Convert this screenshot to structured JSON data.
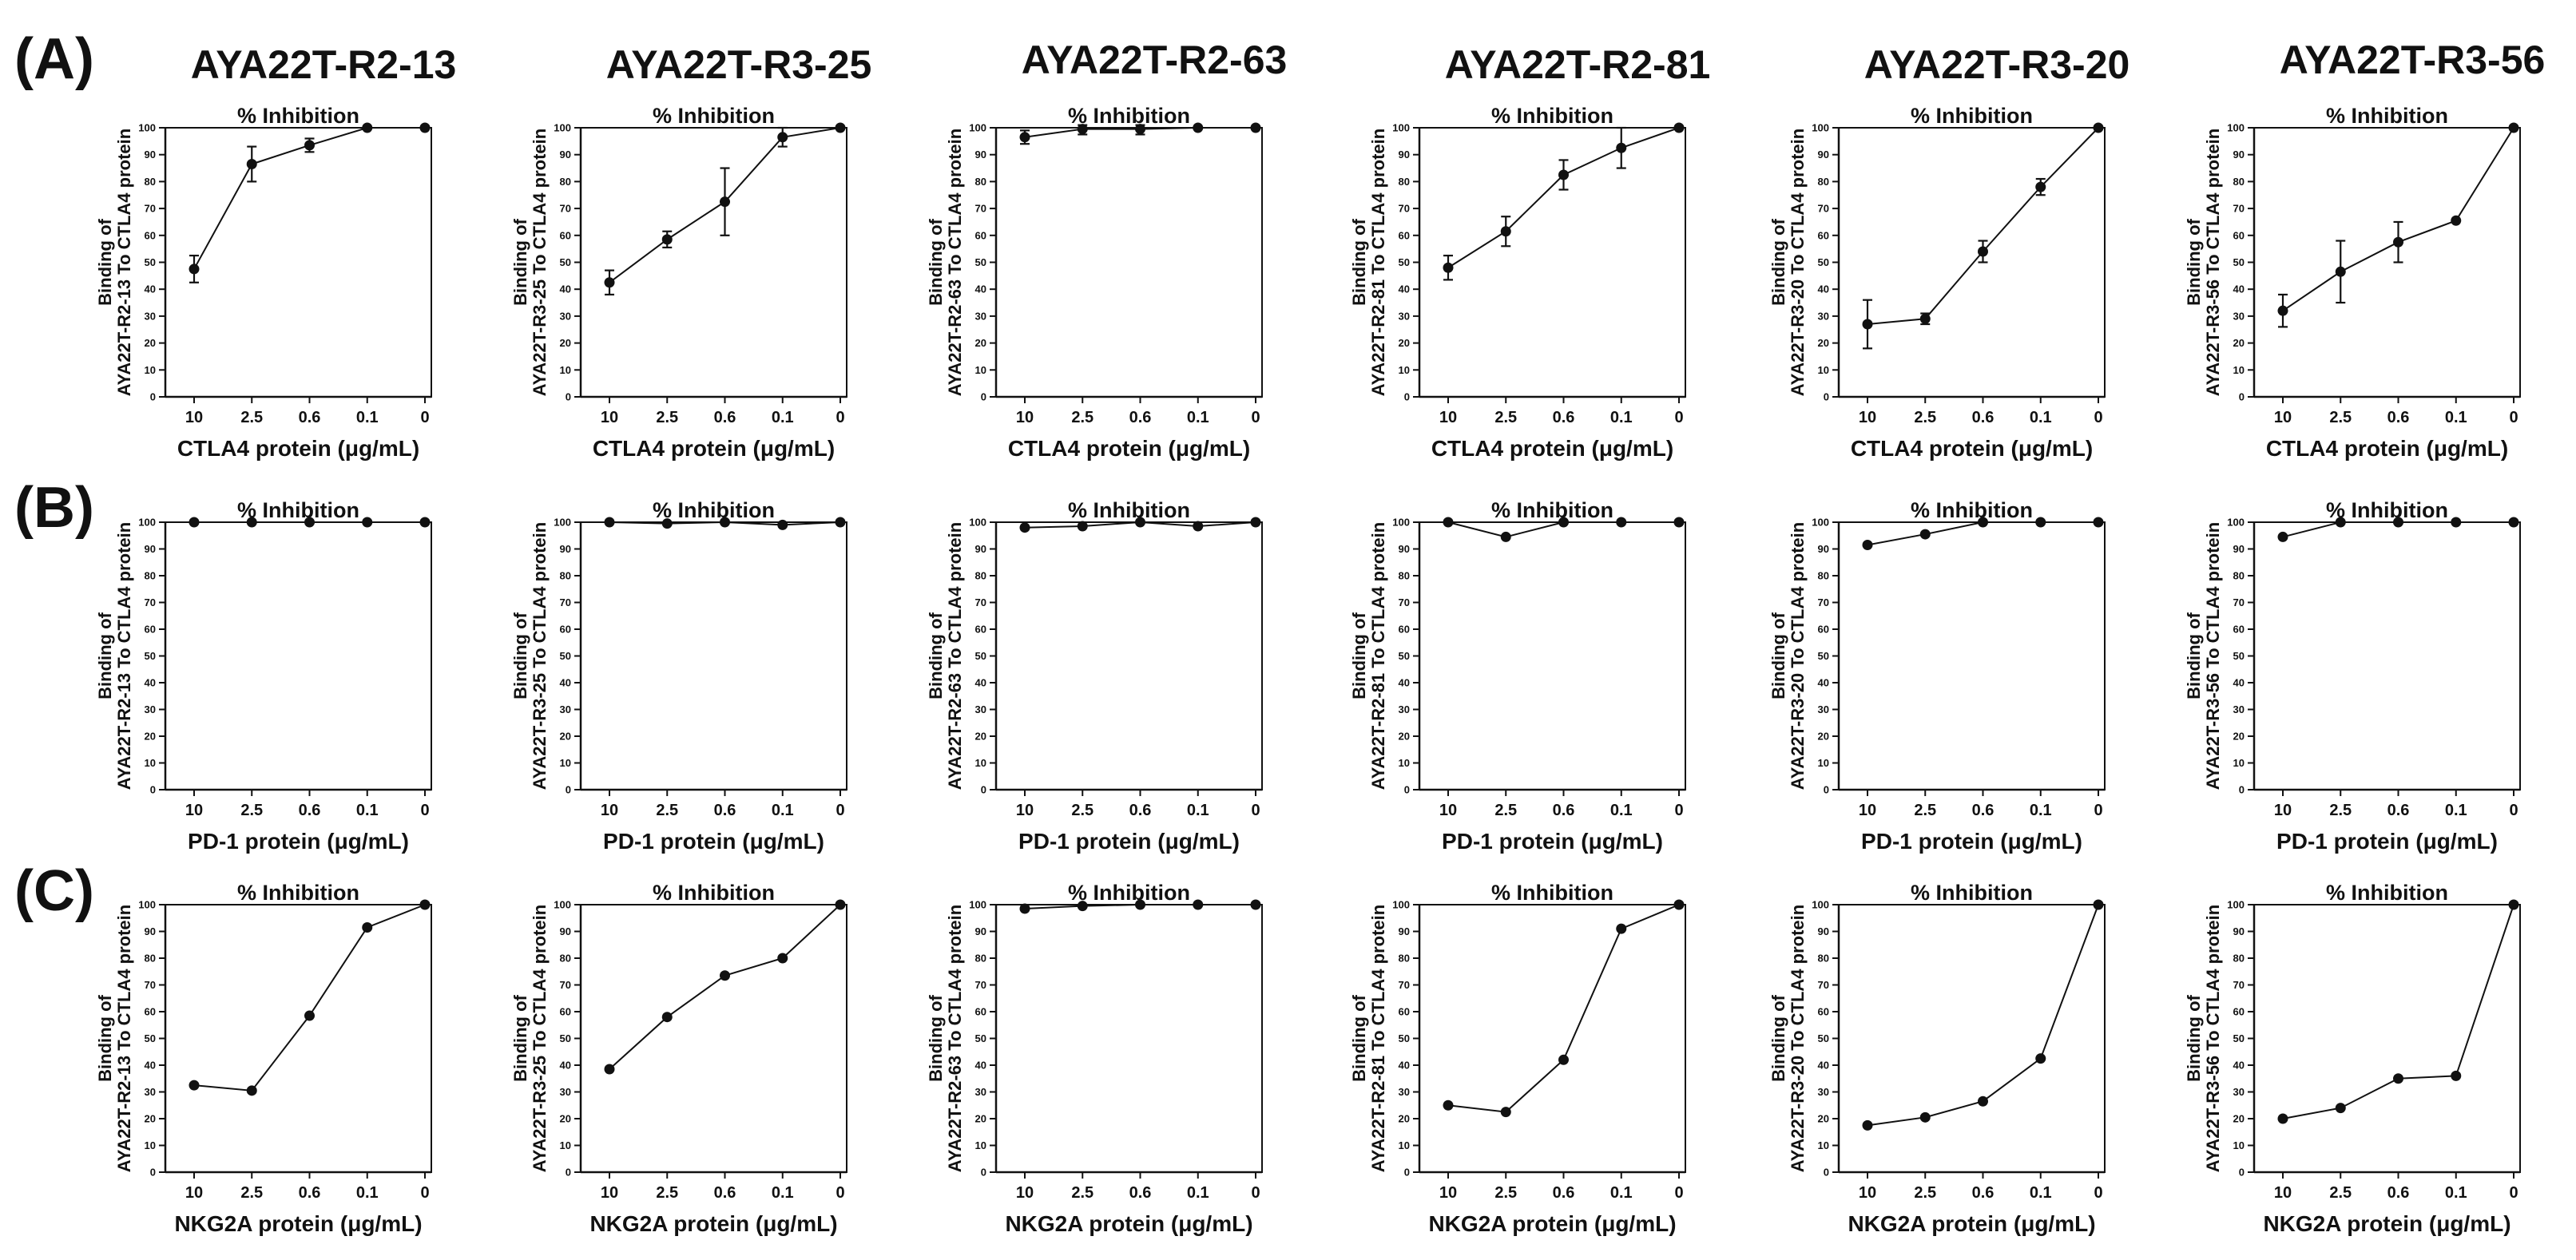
{
  "figure": {
    "column_titles": [
      "AYA22T-R2-13",
      "AYA22T-R3-25",
      "AYA22T-R2-63",
      "AYA22T-R2-81",
      "AYA22T-R3-20",
      "AYA22T-R3-56"
    ],
    "rows": [
      {
        "letter": "(A)",
        "xlabel": "CTLA4 protein (μg/mL)"
      },
      {
        "letter": "(B)",
        "xlabel": "PD-1 protein (μg/mL)"
      },
      {
        "letter": "(C)",
        "xlabel": "NKG2A protein (μg/mL)"
      }
    ]
  },
  "chart_data": [
    {
      "type": "line",
      "row": "A",
      "column": "AYA22T-R2-13",
      "title": "% Inhibition",
      "ylabel_line1": "Binding of",
      "ylabel_line2": "AYA22T-R2-13 To CTLA4 protein",
      "xlabel": "CTLA4 protein (μg/mL)",
      "categories": [
        "10",
        "2.5",
        "0.6",
        "0.1",
        "0"
      ],
      "values": [
        47.5,
        86.5,
        93.5,
        100,
        100
      ],
      "errors": [
        5,
        6.5,
        2.5,
        0,
        0
      ],
      "ylim": [
        0,
        100
      ],
      "yticks": [
        0,
        10,
        20,
        30,
        40,
        50,
        60,
        70,
        80,
        90,
        100
      ]
    },
    {
      "type": "line",
      "row": "A",
      "column": "AYA22T-R3-25",
      "title": "% Inhibition",
      "ylabel_line1": "Binding of",
      "ylabel_line2": "AYA22T-R3-25 To CTLA4 protein",
      "xlabel": "CTLA4 protein (μg/mL)",
      "categories": [
        "10",
        "2.5",
        "0.6",
        "0.1",
        "0"
      ],
      "values": [
        42.5,
        58.5,
        72.5,
        96.5,
        100
      ],
      "errors": [
        4.5,
        3,
        12.5,
        3.5,
        0
      ],
      "ylim": [
        0,
        100
      ],
      "yticks": [
        0,
        10,
        20,
        30,
        40,
        50,
        60,
        70,
        80,
        90,
        100
      ]
    },
    {
      "type": "line",
      "row": "A",
      "column": "AYA22T-R2-63",
      "title": "% Inhibition",
      "ylabel_line1": "Binding of",
      "ylabel_line2": "AYA22T-R2-63 To CTLA4 protein",
      "xlabel": "CTLA4 protein (μg/mL)",
      "categories": [
        "10",
        "2.5",
        "0.6",
        "0.1",
        "0"
      ],
      "values": [
        96.5,
        99.5,
        99.5,
        100,
        100
      ],
      "errors": [
        2.5,
        2,
        2,
        0,
        0
      ],
      "ylim": [
        0,
        100
      ],
      "yticks": [
        0,
        10,
        20,
        30,
        40,
        50,
        60,
        70,
        80,
        90,
        100
      ]
    },
    {
      "type": "line",
      "row": "A",
      "column": "AYA22T-R2-81",
      "title": "% Inhibition",
      "ylabel_line1": "Binding of",
      "ylabel_line2": "AYA22T-R2-81 To CTLA4 protein",
      "xlabel": "CTLA4 protein (μg/mL)",
      "categories": [
        "10",
        "2.5",
        "0.6",
        "0.1",
        "0"
      ],
      "values": [
        48,
        61.5,
        82.5,
        92.5,
        100
      ],
      "errors": [
        4.5,
        5.5,
        5.5,
        7.5,
        0
      ],
      "ylim": [
        0,
        100
      ],
      "yticks": [
        0,
        10,
        20,
        30,
        40,
        50,
        60,
        70,
        80,
        90,
        100
      ]
    },
    {
      "type": "line",
      "row": "A",
      "column": "AYA22T-R3-20",
      "title": "% Inhibition",
      "ylabel_line1": "Binding of",
      "ylabel_line2": "AYA22T-R3-20 To CTLA4 protein",
      "xlabel": "CTLA4 protein (μg/mL)",
      "categories": [
        "10",
        "2.5",
        "0.6",
        "0.1",
        "0"
      ],
      "values": [
        27,
        29,
        54,
        78,
        100
      ],
      "errors": [
        9,
        2,
        4,
        3,
        0
      ],
      "ylim": [
        0,
        100
      ],
      "yticks": [
        0,
        10,
        20,
        30,
        40,
        50,
        60,
        70,
        80,
        90,
        100
      ]
    },
    {
      "type": "line",
      "row": "A",
      "column": "AYA22T-R3-56",
      "title": "% Inhibition",
      "ylabel_line1": "Binding of",
      "ylabel_line2": "AYA22T-R3-56 To CTLA4 protein",
      "xlabel": "CTLA4 protein (μg/mL)",
      "categories": [
        "10",
        "2.5",
        "0.6",
        "0.1",
        "0"
      ],
      "values": [
        32,
        46.5,
        57.5,
        65.5,
        100
      ],
      "errors": [
        6,
        11.5,
        7.5,
        0,
        0
      ],
      "ylim": [
        0,
        100
      ],
      "yticks": [
        0,
        10,
        20,
        30,
        40,
        50,
        60,
        70,
        80,
        90,
        100
      ]
    },
    {
      "type": "line",
      "row": "B",
      "column": "AYA22T-R2-13",
      "title": "% Inhibition",
      "ylabel_line1": "Binding of",
      "ylabel_line2": "AYA22T-R2-13 To CTLA4 protein",
      "xlabel": "PD-1 protein (μg/mL)",
      "categories": [
        "10",
        "2.5",
        "0.6",
        "0.1",
        "0"
      ],
      "values": [
        100,
        100,
        100,
        100,
        100
      ],
      "ylim": [
        0,
        100
      ],
      "yticks": [
        0,
        10,
        20,
        30,
        40,
        50,
        60,
        70,
        80,
        90,
        100
      ]
    },
    {
      "type": "line",
      "row": "B",
      "column": "AYA22T-R3-25",
      "title": "% Inhibition",
      "ylabel_line1": "Binding of",
      "ylabel_line2": "AYA22T-R3-25 To CTLA4 protein",
      "xlabel": "PD-1 protein (μg/mL)",
      "categories": [
        "10",
        "2.5",
        "0.6",
        "0.1",
        "0"
      ],
      "values": [
        100,
        99.5,
        100,
        99,
        100
      ],
      "ylim": [
        0,
        100
      ],
      "yticks": [
        0,
        10,
        20,
        30,
        40,
        50,
        60,
        70,
        80,
        90,
        100
      ]
    },
    {
      "type": "line",
      "row": "B",
      "column": "AYA22T-R2-63",
      "title": "% Inhibition",
      "ylabel_line1": "Binding of",
      "ylabel_line2": "AYA22T-R2-63 To CTLA4 protein",
      "xlabel": "PD-1 protein (μg/mL)",
      "categories": [
        "10",
        "2.5",
        "0.6",
        "0.1",
        "0"
      ],
      "values": [
        98,
        98.5,
        100,
        98.5,
        100
      ],
      "ylim": [
        0,
        100
      ],
      "yticks": [
        0,
        10,
        20,
        30,
        40,
        50,
        60,
        70,
        80,
        90,
        100
      ]
    },
    {
      "type": "line",
      "row": "B",
      "column": "AYA22T-R2-81",
      "title": "% Inhibition",
      "ylabel_line1": "Binding of",
      "ylabel_line2": "AYA22T-R2-81 To CTLA4 protein",
      "xlabel": "PD-1 protein (μg/mL)",
      "categories": [
        "10",
        "2.5",
        "0.6",
        "0.1",
        "0"
      ],
      "values": [
        100,
        94.5,
        100,
        100,
        100
      ],
      "ylim": [
        0,
        100
      ],
      "yticks": [
        0,
        10,
        20,
        30,
        40,
        50,
        60,
        70,
        80,
        90,
        100
      ]
    },
    {
      "type": "line",
      "row": "B",
      "column": "AYA22T-R3-20",
      "title": "% Inhibition",
      "ylabel_line1": "Binding of",
      "ylabel_line2": "AYA22T-R3-20 To CTLA4 protein",
      "xlabel": "PD-1 protein (μg/mL)",
      "categories": [
        "10",
        "2.5",
        "0.6",
        "0.1",
        "0"
      ],
      "values": [
        91.5,
        95.5,
        100,
        100,
        100
      ],
      "ylim": [
        0,
        100
      ],
      "yticks": [
        0,
        10,
        20,
        30,
        40,
        50,
        60,
        70,
        80,
        90,
        100
      ]
    },
    {
      "type": "line",
      "row": "B",
      "column": "AYA22T-R3-56",
      "title": "% Inhibition",
      "ylabel_line1": "Binding of",
      "ylabel_line2": "AYA22T-R3-56 To CTLA4 protein",
      "xlabel": "PD-1 protein (μg/mL)",
      "categories": [
        "10",
        "2.5",
        "0.6",
        "0.1",
        "0"
      ],
      "values": [
        94.5,
        100,
        100,
        100,
        100
      ],
      "ylim": [
        0,
        100
      ],
      "yticks": [
        0,
        10,
        20,
        30,
        40,
        50,
        60,
        70,
        80,
        90,
        100
      ]
    },
    {
      "type": "line",
      "row": "C",
      "column": "AYA22T-R2-13",
      "title": "% Inhibition",
      "ylabel_line1": "Binding of",
      "ylabel_line2": "AYA22T-R2-13 To CTLA4 protein",
      "xlabel": "NKG2A protein (μg/mL)",
      "categories": [
        "10",
        "2.5",
        "0.6",
        "0.1",
        "0"
      ],
      "values": [
        32.5,
        30.5,
        58.5,
        91.5,
        100
      ],
      "ylim": [
        0,
        100
      ],
      "yticks": [
        0,
        10,
        20,
        30,
        40,
        50,
        60,
        70,
        80,
        90,
        100
      ]
    },
    {
      "type": "line",
      "row": "C",
      "column": "AYA22T-R3-25",
      "title": "% Inhibition",
      "ylabel_line1": "Binding of",
      "ylabel_line2": "AYA22T-R3-25 To CTLA4 protein",
      "xlabel": "NKG2A protein (μg/mL)",
      "categories": [
        "10",
        "2.5",
        "0.6",
        "0.1",
        "0"
      ],
      "values": [
        38.5,
        58,
        73.5,
        80,
        100
      ],
      "ylim": [
        0,
        100
      ],
      "yticks": [
        0,
        10,
        20,
        30,
        40,
        50,
        60,
        70,
        80,
        90,
        100
      ]
    },
    {
      "type": "line",
      "row": "C",
      "column": "AYA22T-R2-63",
      "title": "% Inhibition",
      "ylabel_line1": "Binding of",
      "ylabel_line2": "AYA22T-R2-63 To CTLA4 protein",
      "xlabel": "NKG2A protein (μg/mL)",
      "categories": [
        "10",
        "2.5",
        "0.6",
        "0.1",
        "0"
      ],
      "values": [
        98.5,
        99.5,
        100,
        100,
        100
      ],
      "ylim": [
        0,
        100
      ],
      "yticks": [
        0,
        10,
        20,
        30,
        40,
        50,
        60,
        70,
        80,
        90,
        100
      ]
    },
    {
      "type": "line",
      "row": "C",
      "column": "AYA22T-R2-81",
      "title": "% Inhibition",
      "ylabel_line1": "Binding of",
      "ylabel_line2": "AYA22T-R2-81 To CTLA4 protein",
      "xlabel": "NKG2A protein (μg/mL)",
      "categories": [
        "10",
        "2.5",
        "0.6",
        "0.1",
        "0"
      ],
      "values": [
        25,
        22.5,
        42,
        91,
        100
      ],
      "ylim": [
        0,
        100
      ],
      "yticks": [
        0,
        10,
        20,
        30,
        40,
        50,
        60,
        70,
        80,
        90,
        100
      ]
    },
    {
      "type": "line",
      "row": "C",
      "column": "AYA22T-R3-20",
      "title": "% Inhibition",
      "ylabel_line1": "Binding of",
      "ylabel_line2": "AYA22T-R3-20 To CTLA4 protein",
      "xlabel": "NKG2A protein (μg/mL)",
      "categories": [
        "10",
        "2.5",
        "0.6",
        "0.1",
        "0"
      ],
      "values": [
        17.5,
        20.5,
        26.5,
        42.5,
        100
      ],
      "ylim": [
        0,
        100
      ],
      "yticks": [
        0,
        10,
        20,
        30,
        40,
        50,
        60,
        70,
        80,
        90,
        100
      ]
    },
    {
      "type": "line",
      "row": "C",
      "column": "AYA22T-R3-56",
      "title": "% Inhibition",
      "ylabel_line1": "Binding of",
      "ylabel_line2": "AYA22T-R3-56 To CTLA4 protein",
      "xlabel": "NKG2A protein (μg/mL)",
      "categories": [
        "10",
        "2.5",
        "0.6",
        "0.1",
        "0"
      ],
      "values": [
        20,
        24,
        35,
        36,
        100
      ],
      "ylim": [
        0,
        100
      ],
      "yticks": [
        0,
        10,
        20,
        30,
        40,
        50,
        60,
        70,
        80,
        90,
        100
      ]
    }
  ]
}
